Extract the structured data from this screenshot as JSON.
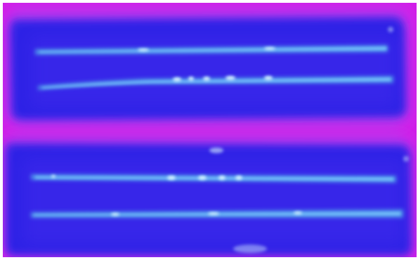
{
  "image": {
    "colors": {
      "background": "#ffffff",
      "frame": "#d11ee8",
      "frame_glow": "#b33cf0",
      "panel": "#2e20e6",
      "panel_edge": "#4a2ef0",
      "stripe": "#4b8de9",
      "stripe_core": "#7bc7ff",
      "hotspot": "#d7f5ff",
      "stripe_glow": "#4060f0"
    }
  }
}
